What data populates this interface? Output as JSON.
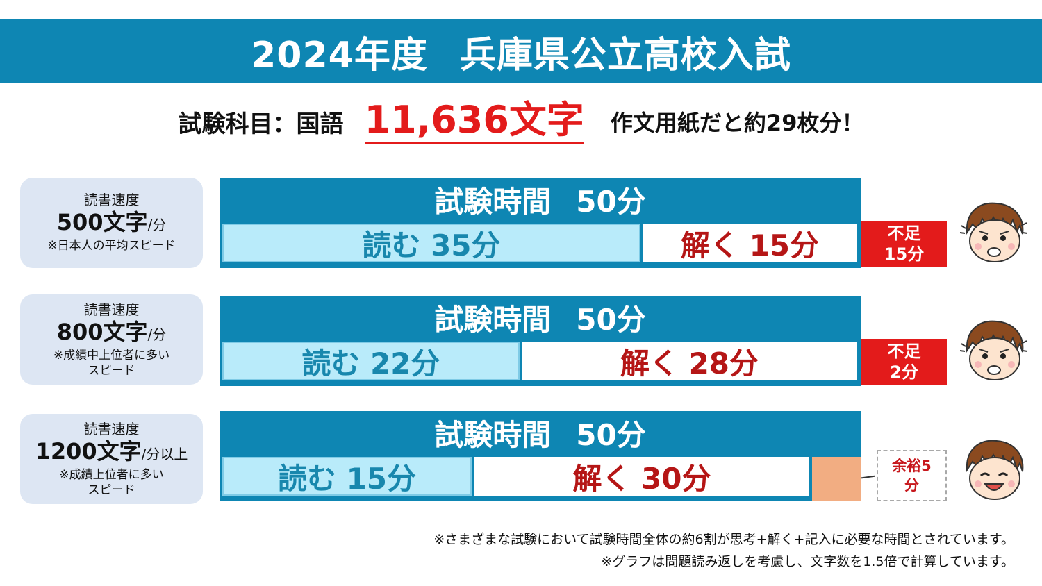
{
  "header": {
    "year": "2024年度",
    "title": "兵庫県公立高校入試"
  },
  "subject": {
    "label": "試験科目：国語",
    "count": "11,636文字",
    "equivalent": "作文用紙だと約29枚分！"
  },
  "rows": [
    {
      "speed_label": "読書速度",
      "speed_value": "500文字",
      "speed_unit": "/分",
      "note1": "※日本人の平均スピード",
      "note2": "",
      "bar_title": "試験時間",
      "bar_minutes": "50分",
      "read": "読む 35分",
      "solve": "解く 15分",
      "read_minutes": 35,
      "solve_minutes": 15,
      "status": "不足",
      "status_minutes": "15分",
      "face": "worried-boy-face-icon"
    },
    {
      "speed_label": "読書速度",
      "speed_value": "800文字",
      "speed_unit": "/分",
      "note1": "※成績中上位者に多い",
      "note2": "スピード",
      "bar_title": "試験時間",
      "bar_minutes": "50分",
      "read": "読む 22分",
      "solve": "解く 28分",
      "read_minutes": 22,
      "solve_minutes": 28,
      "status": "不足",
      "status_minutes": "2分",
      "face": "worried-boy-face-icon"
    },
    {
      "speed_label": "読書速度",
      "speed_value": "1200文字",
      "speed_unit": "/分以上",
      "note1": "※成績上位者に多い",
      "note2": "スピード",
      "bar_title": "試験時間",
      "bar_minutes": "50分",
      "read": "読む 15分",
      "solve": "解く 30分",
      "read_minutes": 15,
      "solve_minutes": 30,
      "spare_minutes": 5,
      "status": "余裕5",
      "status_minutes": "分",
      "face": "happy-boy-face-icon"
    }
  ],
  "footnotes": [
    "※さまざまな試験において試験時間全体の約6割が思考+解く+記入に必要な時間とされています。",
    "※グラフは問題読み返しを考慮し、文字数を1.5倍で計算しています。"
  ],
  "colors": {
    "header": "#0e86b3",
    "read": "#b9ebfa",
    "solve_text": "#b51616",
    "short": "#e31b1b",
    "spare": "#f2ad82"
  }
}
